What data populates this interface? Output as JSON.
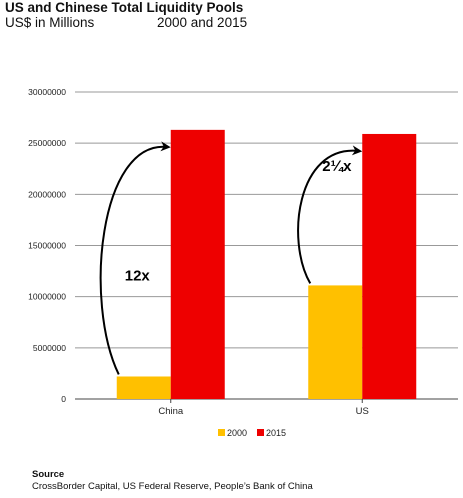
{
  "header": {
    "title": "US and Chinese Total Liquidity Pools",
    "units": "US$ in Millions",
    "period": "2000 and 2015"
  },
  "source": {
    "label": "Source",
    "text": "CrossBorder Capital, US Federal Reserve, People’s Bank of China"
  },
  "colors": {
    "s2000": "#FFC000",
    "s2015": "#EE0000",
    "grid": "#999999"
  },
  "chart_data": {
    "type": "bar",
    "categories": [
      "China",
      "US"
    ],
    "series": [
      {
        "name": "2000",
        "values": [
          2200000,
          11100000
        ]
      },
      {
        "name": "2015",
        "values": [
          26300000,
          25900000
        ]
      }
    ],
    "ylim": [
      0,
      30000000
    ],
    "yticks": [
      0,
      5000000,
      10000000,
      15000000,
      20000000,
      25000000,
      30000000
    ],
    "grid": true,
    "legend_position": "bottom-center",
    "annotations": [
      {
        "category": "China",
        "text": "12x"
      },
      {
        "category": "US",
        "text": "2¼x"
      }
    ]
  }
}
